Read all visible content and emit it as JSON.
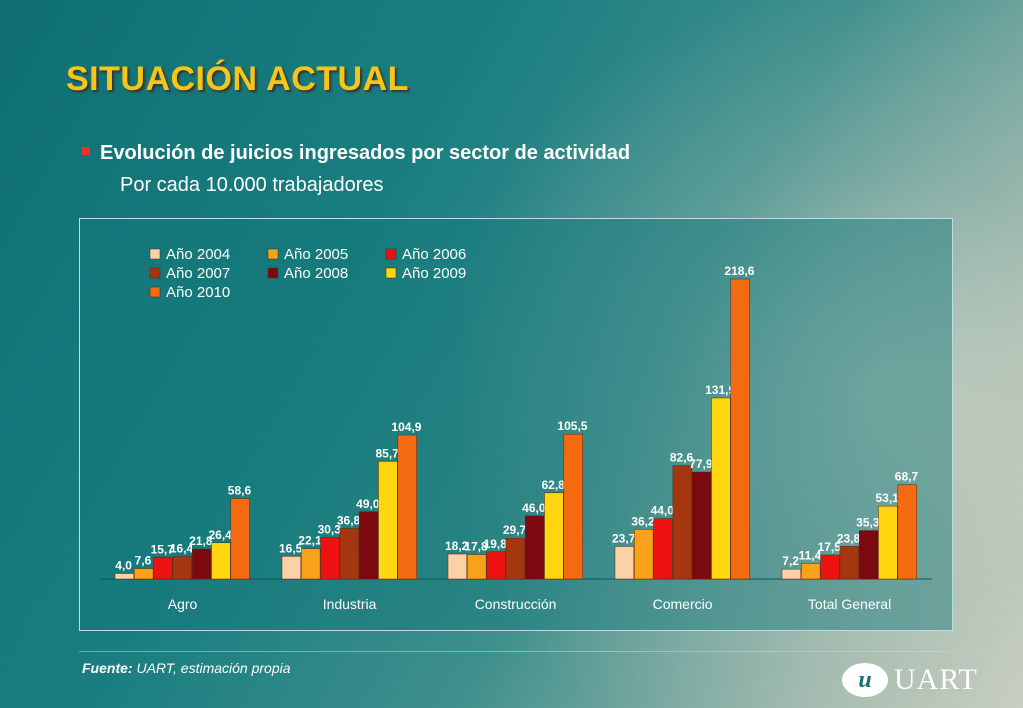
{
  "slide": {
    "title": "SITUACIÓN ACTUAL",
    "subtitle": "Evolución de juicios ingresados por sector de actividad",
    "subsubtitle": "Por cada 10.000 trabajadores",
    "source_label": "Fuente:",
    "source_text": "UART, estimación propia",
    "logo_mark": "u",
    "logo_text": "UART"
  },
  "chart_data": {
    "type": "bar",
    "categories": [
      "Agro",
      "Industria",
      "Construcción",
      "Comercio",
      "Total General"
    ],
    "series": [
      {
        "name": "Año 2004",
        "color": "#fbd1a8",
        "values": [
          4.0,
          16.5,
          18.2,
          23.7,
          7.2
        ],
        "labels": [
          "4,0",
          "16,5",
          "18,2",
          "23,7",
          "7,2"
        ]
      },
      {
        "name": "Año 2005",
        "color": "#f7a21a",
        "values": [
          7.6,
          22.1,
          17.8,
          36.2,
          11.4
        ],
        "labels": [
          "7,6",
          "22,1",
          "17,8",
          "36,2",
          "11,4"
        ]
      },
      {
        "name": "Año 2006",
        "color": "#ee1111",
        "values": [
          15.7,
          30.3,
          19.8,
          44.0,
          17.5
        ],
        "labels": [
          "15,7",
          "30,3",
          "19,8",
          "44,0",
          "17,5"
        ]
      },
      {
        "name": "Año 2007",
        "color": "#a4370f",
        "values": [
          16.4,
          36.8,
          29.7,
          82.6,
          23.8
        ],
        "labels": [
          "16,4",
          "36,8",
          "29,7",
          "82,6",
          "23,8"
        ]
      },
      {
        "name": "Año 2008",
        "color": "#7c0910",
        "values": [
          21.8,
          49.0,
          46.0,
          77.9,
          35.3
        ],
        "labels": [
          "21,8",
          "49,0",
          "46,0",
          "77,9",
          "35,3"
        ]
      },
      {
        "name": "Año 2009",
        "color": "#ffd60f",
        "values": [
          26.4,
          85.7,
          62.8,
          131.9,
          53.1
        ],
        "labels": [
          "26,4",
          "85,7",
          "62,8",
          "131,9",
          "53,1"
        ]
      },
      {
        "name": "Año 2010",
        "color": "#f36a10",
        "values": [
          58.6,
          104.9,
          105.5,
          218.6,
          68.7
        ],
        "labels": [
          "58,6",
          "104,9",
          "105,5",
          "218,6",
          "68,7"
        ]
      }
    ],
    "ylim": [
      0,
      218.6
    ],
    "grid": false,
    "legend_position": "top-left"
  }
}
